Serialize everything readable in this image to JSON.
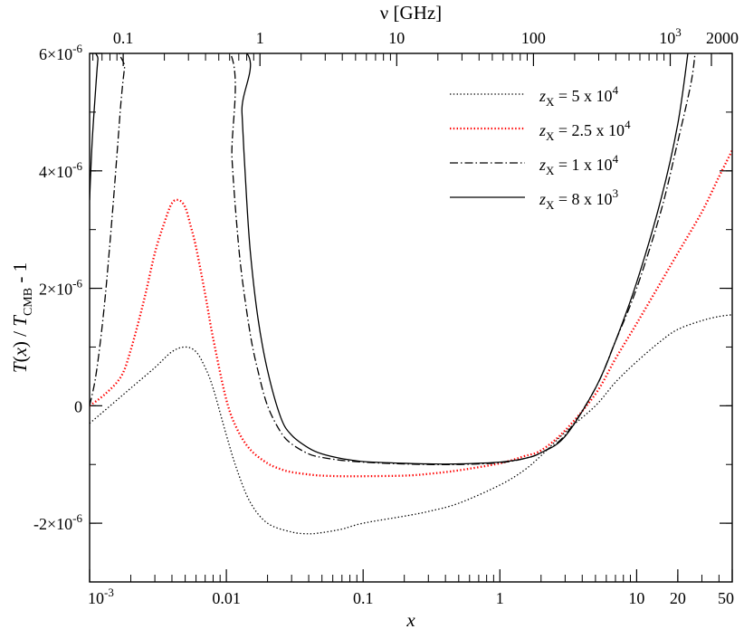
{
  "chart_data": {
    "type": "line",
    "title": "",
    "xlabel": "x",
    "ylabel": "T(x) / T_CMB - 1",
    "x2label": "ν  [GHz]",
    "x_scale": "log",
    "xlim": [
      0.001,
      50
    ],
    "ylim": [
      -3e-06,
      6e-06
    ],
    "grid": false,
    "legend_position": "top-right",
    "x_ticks": [
      {
        "value": 0.001,
        "base": "10",
        "exp": "-3"
      },
      {
        "value": 0.01,
        "label": "0.01"
      },
      {
        "value": 0.1,
        "label": "0.1"
      },
      {
        "value": 1,
        "label": "1"
      },
      {
        "value": 10,
        "label": "10"
      },
      {
        "value": 20,
        "label": "20"
      },
      {
        "value": 50,
        "label": "50"
      }
    ],
    "x2_ticks": [
      {
        "nu": 0.1,
        "label": "0.1"
      },
      {
        "nu": 1,
        "label": "1"
      },
      {
        "nu": 10,
        "label": "10"
      },
      {
        "nu": 100,
        "label": "100"
      },
      {
        "nu": 1000,
        "base": "10",
        "exp": "3"
      },
      {
        "nu": 2000,
        "label": "2000"
      }
    ],
    "y_ticks": [
      {
        "value": 6e-06,
        "base": "6×10",
        "exp": "-6"
      },
      {
        "value": 4e-06,
        "base": "4×10",
        "exp": "-6"
      },
      {
        "value": 2e-06,
        "base": "2×10",
        "exp": "-6"
      },
      {
        "value": 0,
        "label": "0"
      },
      {
        "value": -2e-06,
        "base": "-2×10",
        "exp": "-6"
      }
    ],
    "series": [
      {
        "name": "z_X = 5 x 10^4",
        "legend": {
          "sym": "z",
          "sub": "X",
          "text": " = 5 x 10",
          "sup": "4"
        },
        "style": "dotted",
        "color": "#000000",
        "x": [
          0.001,
          0.0015,
          0.002,
          0.003,
          0.004,
          0.005,
          0.006,
          0.007,
          0.008,
          0.01,
          0.012,
          0.015,
          0.02,
          0.03,
          0.04,
          0.05,
          0.07,
          0.1,
          0.2,
          0.3,
          0.5,
          1,
          1.5,
          2,
          3,
          5,
          7,
          10,
          15,
          20,
          30,
          40,
          50
        ],
        "y": [
          -3e-07,
          5e-08,
          3e-07,
          6.5e-07,
          9.2e-07,
          1e-06,
          9.2e-07,
          6.5e-07,
          3e-07,
          -5e-07,
          -1.1e-06,
          -1.65e-06,
          -2e-06,
          -2.15e-06,
          -2.18e-06,
          -2.16e-06,
          -2.1e-06,
          -2e-06,
          -1.88e-06,
          -1.8e-06,
          -1.66e-06,
          -1.35e-06,
          -1.1e-06,
          -8.5e-07,
          -4.5e-07,
          0.0,
          4e-07,
          7.5e-07,
          1.1e-06,
          1.3e-06,
          1.45e-06,
          1.52e-06,
          1.55e-06
        ]
      },
      {
        "name": "z_X = 2.5 x 10^4",
        "legend": {
          "sym": "z",
          "sub": "X",
          "text": " = 2.5 x 10",
          "sup": "4"
        },
        "style": "dotted",
        "color": "#ff0000",
        "x": [
          0.001,
          0.0013,
          0.0017,
          0.002,
          0.0025,
          0.003,
          0.0035,
          0.004,
          0.0045,
          0.005,
          0.0055,
          0.006,
          0.007,
          0.008,
          0.01,
          0.012,
          0.015,
          0.02,
          0.025,
          0.03,
          0.04,
          0.05,
          0.07,
          0.1,
          0.2,
          0.3,
          0.5,
          1,
          1.5,
          2,
          3,
          5,
          7,
          10,
          15,
          20,
          30,
          40,
          50
        ],
        "y": [
          0.0,
          2e-07,
          5e-07,
          9.5e-07,
          1.8e-06,
          2.6e-06,
          3.1e-06,
          3.45e-06,
          3.5e-06,
          3.38e-06,
          3.05e-06,
          2.7e-06,
          1.9e-06,
          1.15e-06,
          1e-07,
          -4e-07,
          -7.5e-07,
          -9.8e-07,
          -1.08e-06,
          -1.13e-06,
          -1.17e-06,
          -1.19e-06,
          -1.2e-06,
          -1.2e-06,
          -1.19e-06,
          -1.16e-06,
          -1.1e-06,
          -9.8e-07,
          -8.6e-07,
          -7.6e-07,
          -4.2e-07,
          2e-07,
          8e-07,
          1.4e-06,
          2.1e-06,
          2.6e-06,
          3.3e-06,
          3.9e-06,
          4.35e-06
        ]
      },
      {
        "name": "z_X = 1 x 10^4",
        "legend": {
          "sym": "z",
          "sub": "X",
          "text": " = 1 x 10",
          "sup": "4"
        },
        "style": "dashdot",
        "color": "#000000",
        "x": [
          0.001,
          0.0011,
          0.0012,
          0.0013,
          0.0014,
          0.0015,
          0.0016,
          0.0017,
          0.0018,
          0.0019,
          0.01,
          0.011,
          0.012,
          0.013,
          0.015,
          0.017,
          0.02,
          0.025,
          0.03,
          0.04,
          0.05,
          0.07,
          0.1,
          0.15,
          0.2,
          0.3,
          0.5,
          1,
          1.5,
          2,
          3,
          5,
          7,
          10,
          15,
          20,
          25,
          27
        ],
        "y": [
          0.0,
          4.5e-07,
          1.1e-06,
          1.85e-06,
          2.7e-06,
          3.55e-06,
          4.4e-06,
          5.2e-06,
          5.75e-06,
          6.1e-06,
          6.1e-06,
          4.2e-06,
          3e-06,
          2.2e-06,
          1.2e-06,
          6e-07,
          0.0,
          -4.5e-07,
          -6.5e-07,
          -8.2e-07,
          -8.8e-07,
          -9.3e-07,
          -9.6e-07,
          -9.8e-07,
          -9.9e-07,
          -1e-06,
          -1e-06,
          -9.7e-07,
          -9e-07,
          -8e-07,
          -5e-07,
          3e-07,
          1.1e-06,
          2e-06,
          3.3e-06,
          4.5e-06,
          5.5e-06,
          6.1e-06
        ]
      },
      {
        "name": "z_X = 8 x 10^3",
        "legend": {
          "sym": "z",
          "sub": "X",
          "text": " = 8 x 10",
          "sup": "3"
        },
        "style": "solid",
        "color": "#000000",
        "x": [
          0.001,
          0.00102,
          0.00105,
          0.0011,
          0.00115,
          0.0012,
          0.0125,
          0.013,
          0.014,
          0.015,
          0.017,
          0.02,
          0.025,
          0.03,
          0.04,
          0.05,
          0.07,
          0.1,
          0.15,
          0.2,
          0.3,
          0.5,
          1,
          1.5,
          2,
          3,
          5,
          7,
          10,
          15,
          20,
          24
        ],
        "y": [
          3.5e-06,
          4e-06,
          4.6e-06,
          5.3e-06,
          5.9e-06,
          6.2e-06,
          6.1e-06,
          5e-06,
          3.6e-06,
          2.6e-06,
          1.5e-06,
          6e-07,
          -2e-07,
          -5e-07,
          -7.2e-07,
          -8.2e-07,
          -9e-07,
          -9.5e-07,
          -9.7e-07,
          -9.8e-07,
          -9.9e-07,
          -9.9e-07,
          -9.6e-07,
          -9e-07,
          -8e-07,
          -5.2e-07,
          3e-07,
          1.1e-06,
          2.1e-06,
          3.5e-06,
          4.8e-06,
          6.1e-06
        ]
      }
    ]
  }
}
